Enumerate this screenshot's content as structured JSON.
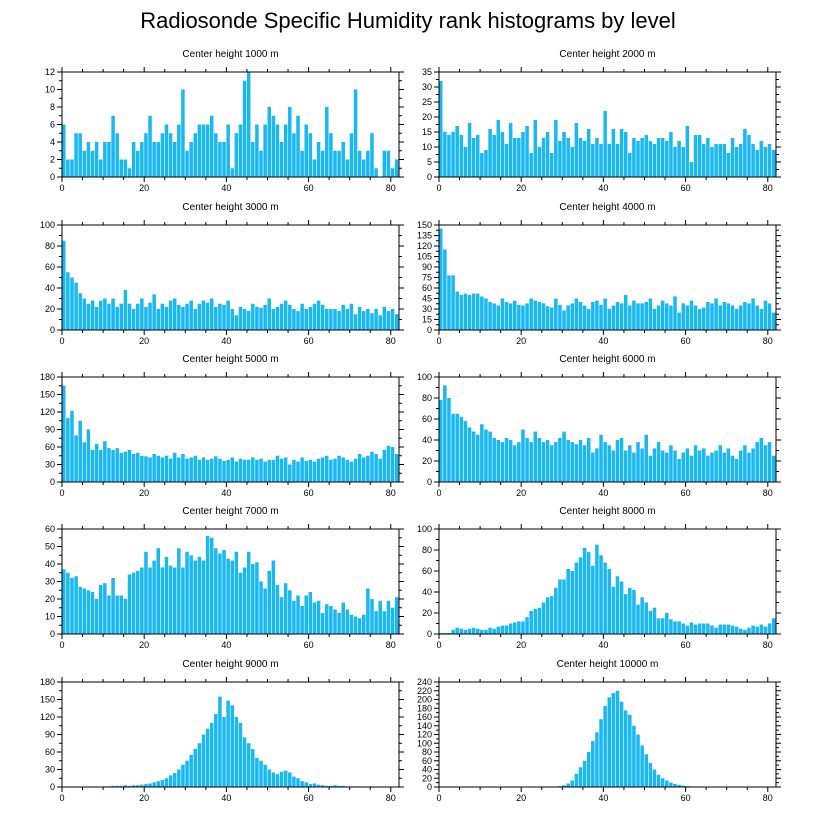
{
  "page_title": "Radiosonde Specific Humidity rank histograms by level",
  "colors": {
    "bar": "#1ab8f2",
    "axis": "#000000",
    "background": "#ffffff"
  },
  "chart_data": [
    {
      "type": "bar",
      "title": "Center height 1000 m",
      "xlabel": "",
      "ylabel": "",
      "xlim": [
        0,
        82
      ],
      "ylim": [
        0,
        12
      ],
      "xticks": [
        0,
        20,
        40,
        60,
        80
      ],
      "yticks": [
        0,
        2,
        4,
        6,
        8,
        10,
        12
      ],
      "values": [
        6,
        2,
        2,
        5,
        5,
        3,
        4,
        3,
        4,
        2,
        4,
        4,
        7,
        5,
        2,
        2,
        1,
        4,
        3,
        4,
        5,
        7,
        4,
        4,
        5,
        6,
        5,
        4,
        6,
        10,
        3,
        4,
        5,
        6,
        6,
        6,
        7,
        5,
        4,
        4,
        6,
        1,
        5,
        6,
        11,
        12,
        4,
        6,
        3,
        6,
        8,
        7,
        6,
        4,
        6,
        8,
        5,
        7,
        3,
        6,
        5,
        2,
        4,
        3,
        8,
        5,
        3,
        3,
        4,
        2,
        5,
        10,
        3,
        2,
        3,
        5,
        1,
        0,
        3,
        3,
        1,
        2
      ]
    },
    {
      "type": "bar",
      "title": "Center height 2000 m",
      "xlabel": "",
      "ylabel": "",
      "xlim": [
        0,
        82
      ],
      "ylim": [
        0,
        35
      ],
      "xticks": [
        0,
        20,
        40,
        60,
        80
      ],
      "yticks": [
        0,
        5,
        10,
        15,
        20,
        25,
        30,
        35
      ],
      "values": [
        32,
        15,
        14,
        15,
        17,
        14,
        10,
        18,
        13,
        14,
        8,
        9,
        16,
        14,
        19,
        15,
        11,
        18,
        13,
        13,
        15,
        17,
        8,
        19,
        10,
        13,
        15,
        8,
        19,
        12,
        15,
        13,
        10,
        18,
        13,
        12,
        16,
        11,
        13,
        11,
        22,
        11,
        16,
        11,
        16,
        15,
        8,
        13,
        12,
        13,
        14,
        12,
        11,
        13,
        13,
        12,
        15,
        10,
        12,
        10,
        17,
        5,
        14,
        14,
        11,
        13,
        10,
        11,
        11,
        11,
        8,
        13,
        10,
        11,
        16,
        14,
        11,
        9,
        12,
        10,
        11,
        9
      ]
    },
    {
      "type": "bar",
      "title": "Center height 3000 m",
      "xlabel": "",
      "ylabel": "",
      "xlim": [
        0,
        82
      ],
      "ylim": [
        0,
        100
      ],
      "xticks": [
        0,
        20,
        40,
        60,
        80
      ],
      "yticks": [
        0,
        20,
        40,
        60,
        80,
        100
      ],
      "values": [
        85,
        55,
        50,
        45,
        35,
        30,
        25,
        28,
        22,
        28,
        30,
        25,
        30,
        22,
        25,
        38,
        25,
        20,
        25,
        30,
        22,
        26,
        34,
        20,
        25,
        22,
        28,
        30,
        24,
        22,
        25,
        28,
        20,
        25,
        28,
        26,
        30,
        22,
        25,
        24,
        28,
        20,
        14,
        22,
        20,
        18,
        25,
        22,
        21,
        24,
        30,
        20,
        22,
        25,
        28,
        24,
        20,
        18,
        25,
        20,
        22,
        25,
        28,
        24,
        20,
        20,
        20,
        18,
        24,
        20,
        25,
        15,
        22,
        18,
        20,
        16,
        20,
        14,
        22,
        18,
        20,
        15
      ]
    },
    {
      "type": "bar",
      "title": "Center height 4000 m",
      "xlabel": "",
      "ylabel": "",
      "xlim": [
        0,
        82
      ],
      "ylim": [
        0,
        150
      ],
      "xticks": [
        0,
        20,
        40,
        60,
        80
      ],
      "yticks": [
        0,
        15,
        30,
        45,
        60,
        75,
        90,
        105,
        120,
        135,
        150
      ],
      "values": [
        145,
        115,
        78,
        78,
        55,
        50,
        52,
        50,
        52,
        52,
        48,
        45,
        40,
        38,
        35,
        45,
        40,
        38,
        42,
        36,
        35,
        38,
        45,
        42,
        40,
        38,
        34,
        32,
        45,
        36,
        28,
        35,
        38,
        45,
        40,
        35,
        30,
        40,
        42,
        36,
        45,
        30,
        35,
        40,
        38,
        50,
        35,
        42,
        38,
        38,
        40,
        45,
        30,
        35,
        42,
        38,
        35,
        48,
        25,
        38,
        35,
        42,
        35,
        30,
        32,
        40,
        38,
        45,
        35,
        40,
        38,
        35,
        30,
        35,
        40,
        38,
        45,
        35,
        30,
        42,
        38,
        25
      ]
    },
    {
      "type": "bar",
      "title": "Center height 5000 m",
      "xlabel": "",
      "ylabel": "",
      "xlim": [
        0,
        82
      ],
      "ylim": [
        0,
        180
      ],
      "xticks": [
        0,
        20,
        40,
        60,
        80
      ],
      "yticks": [
        0,
        30,
        60,
        90,
        120,
        150,
        180
      ],
      "values": [
        165,
        110,
        122,
        80,
        105,
        68,
        90,
        55,
        65,
        55,
        70,
        58,
        55,
        58,
        50,
        52,
        55,
        48,
        50,
        45,
        44,
        42,
        48,
        45,
        42,
        45,
        40,
        50,
        42,
        48,
        40,
        42,
        45,
        38,
        42,
        38,
        40,
        44,
        40,
        36,
        38,
        42,
        35,
        40,
        38,
        38,
        42,
        38,
        40,
        35,
        38,
        38,
        45,
        40,
        42,
        30,
        38,
        35,
        42,
        36,
        38,
        35,
        40,
        42,
        45,
        38,
        40,
        45,
        42,
        38,
        35,
        40,
        48,
        42,
        45,
        52,
        48,
        40,
        55,
        62,
        60,
        48
      ]
    },
    {
      "type": "bar",
      "title": "Center height 6000 m",
      "xlabel": "",
      "ylabel": "",
      "xlim": [
        0,
        82
      ],
      "ylim": [
        0,
        100
      ],
      "xticks": [
        0,
        20,
        40,
        60,
        80
      ],
      "yticks": [
        0,
        20,
        40,
        60,
        80,
        100
      ],
      "values": [
        78,
        92,
        80,
        65,
        65,
        62,
        58,
        52,
        48,
        45,
        55,
        50,
        48,
        42,
        40,
        38,
        42,
        40,
        35,
        38,
        50,
        42,
        38,
        48,
        42,
        38,
        40,
        35,
        38,
        42,
        48,
        40,
        38,
        36,
        40,
        35,
        42,
        28,
        32,
        45,
        38,
        35,
        30,
        40,
        42,
        30,
        35,
        28,
        38,
        32,
        45,
        25,
        32,
        38,
        30,
        28,
        35,
        30,
        22,
        28,
        32,
        25,
        35,
        30,
        32,
        25,
        28,
        30,
        35,
        28,
        32,
        25,
        22,
        30,
        35,
        28,
        32,
        38,
        42,
        35,
        38,
        25
      ]
    },
    {
      "type": "bar",
      "title": "Center height 7000 m",
      "xlabel": "",
      "ylabel": "",
      "xlim": [
        0,
        82
      ],
      "ylim": [
        0,
        60
      ],
      "xticks": [
        0,
        20,
        40,
        60,
        80
      ],
      "yticks": [
        0,
        10,
        20,
        30,
        40,
        50,
        60
      ],
      "values": [
        37,
        35,
        32,
        33,
        27,
        26,
        25,
        24,
        20,
        28,
        29,
        22,
        32,
        22,
        22,
        20,
        34,
        35,
        36,
        38,
        47,
        38,
        42,
        49,
        38,
        44,
        39,
        38,
        49,
        38,
        47,
        45,
        42,
        44,
        42,
        56,
        55,
        49,
        46,
        48,
        43,
        42,
        47,
        35,
        38,
        47,
        40,
        41,
        30,
        26,
        36,
        42,
        28,
        21,
        29,
        25,
        19,
        22,
        16,
        22,
        24,
        18,
        19,
        12,
        17,
        16,
        14,
        12,
        18,
        14,
        11,
        10,
        9,
        11,
        26,
        20,
        13,
        19,
        13,
        19,
        15,
        21
      ]
    },
    {
      "type": "bar",
      "title": "Center height 8000 m",
      "xlabel": "",
      "ylabel": "",
      "xlim": [
        0,
        82
      ],
      "ylim": [
        0,
        100
      ],
      "xticks": [
        0,
        20,
        40,
        60,
        80
      ],
      "yticks": [
        0,
        20,
        40,
        60,
        80,
        100
      ],
      "values": [
        1,
        1,
        1,
        4,
        6,
        5,
        4,
        5,
        6,
        5,
        4,
        4,
        6,
        5,
        7,
        8,
        8,
        10,
        11,
        12,
        12,
        16,
        22,
        24,
        25,
        30,
        35,
        36,
        44,
        52,
        52,
        62,
        60,
        68,
        73,
        82,
        78,
        65,
        85,
        75,
        68,
        62,
        45,
        55,
        50,
        38,
        44,
        42,
        28,
        35,
        30,
        22,
        25,
        15,
        15,
        20,
        14,
        12,
        12,
        10,
        8,
        11,
        9,
        10,
        10,
        10,
        8,
        6,
        9,
        9,
        9,
        8,
        7,
        5,
        4,
        6,
        8,
        7,
        9,
        7,
        10,
        15
      ]
    },
    {
      "type": "bar",
      "title": "Center height 9000 m",
      "xlabel": "",
      "ylabel": "",
      "xlim": [
        0,
        82
      ],
      "ylim": [
        0,
        180
      ],
      "xticks": [
        0,
        20,
        40,
        60,
        80
      ],
      "yticks": [
        0,
        30,
        60,
        90,
        120,
        150,
        180
      ],
      "values": [
        0,
        0,
        0,
        0,
        0,
        0,
        0,
        0,
        0,
        0,
        1,
        1,
        2,
        2,
        2,
        3,
        2,
        3,
        3,
        4,
        5,
        6,
        8,
        10,
        12,
        15,
        20,
        24,
        30,
        38,
        45,
        55,
        65,
        75,
        90,
        100,
        110,
        125,
        155,
        120,
        148,
        140,
        120,
        110,
        85,
        75,
        65,
        50,
        45,
        38,
        30,
        25,
        22,
        26,
        28,
        25,
        18,
        15,
        10,
        8,
        5,
        6,
        4,
        3,
        2,
        2,
        3,
        2,
        2,
        1,
        1,
        1,
        1,
        0,
        1,
        1,
        0,
        0,
        0,
        0,
        0,
        0
      ]
    },
    {
      "type": "bar",
      "title": "Center height 10000 m",
      "xlabel": "",
      "ylabel": "",
      "xlim": [
        0,
        82
      ],
      "ylim": [
        0,
        240
      ],
      "xticks": [
        0,
        20,
        40,
        60,
        80
      ],
      "yticks": [
        0,
        20,
        40,
        60,
        80,
        100,
        120,
        140,
        160,
        180,
        200,
        220,
        240
      ],
      "values": [
        0,
        0,
        0,
        0,
        0,
        0,
        0,
        0,
        0,
        0,
        0,
        0,
        0,
        0,
        0,
        0,
        0,
        0,
        0,
        0,
        0,
        0,
        0,
        0,
        0,
        0,
        0,
        0,
        1,
        2,
        4,
        8,
        15,
        30,
        45,
        60,
        80,
        105,
        125,
        155,
        185,
        205,
        215,
        220,
        195,
        175,
        165,
        140,
        120,
        95,
        75,
        55,
        40,
        28,
        20,
        15,
        10,
        7,
        5,
        3,
        2,
        1,
        1,
        1,
        0,
        0,
        0,
        0,
        0,
        0,
        0,
        0,
        0,
        0,
        0,
        0,
        0,
        0,
        0,
        0,
        0,
        0
      ]
    }
  ]
}
